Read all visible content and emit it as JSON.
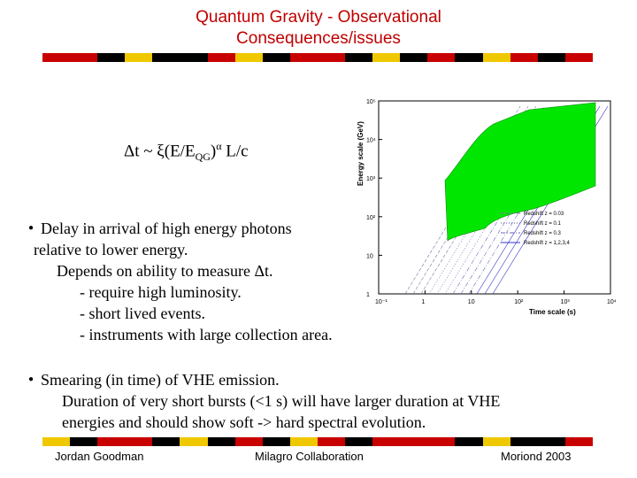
{
  "title": {
    "line1": "Quantum Gravity - Observational",
    "line2": "Consequences/issues"
  },
  "colors": {
    "title": "#c00000",
    "stripe_red": "#c80000",
    "stripe_black": "#000000",
    "stripe_yellow": "#f0c800",
    "band": "#00e600"
  },
  "formula": {
    "lhs": "Δt ~ ξ(E/E",
    "sub": "QG",
    "sup": "α",
    "rhs": " L/c"
  },
  "bullets": [
    {
      "lines": [
        "Delay in arrival of high energy photons",
        "relative to lower energy.",
        "Depends on ability to measure Δt.",
        "- require high luminosity.",
        "- short lived events.",
        "- instruments with large collection area."
      ]
    },
    {
      "lines": [
        "Smearing (in time) of VHE emission.",
        "Duration of very short bursts (<1 s) will have larger duration at VHE",
        "energies and should show soft -> hard spectral evolution."
      ]
    }
  ],
  "footer": {
    "left": "Jordan Goodman",
    "center": "Milagro Collaboration",
    "right": "Moriond 2003"
  },
  "chart_data": {
    "type": "line",
    "xlabel": "Time scale (s)",
    "ylabel": "Energy scale (GeV)",
    "x_ticks": [
      "10⁻¹",
      "1",
      "10",
      "10²",
      "10³",
      "10⁴"
    ],
    "y_ticks": [
      "1",
      "10",
      "10²",
      "10³",
      "10⁴",
      "10⁵"
    ],
    "xscale": "log",
    "yscale": "log",
    "xlim": [
      0.1,
      10000
    ],
    "ylim": [
      1,
      100000
    ],
    "legend_position": "right",
    "series": [
      {
        "name": "Redshift z = 0.03",
        "style": "dashed"
      },
      {
        "name": "Redshift z = 0.1",
        "style": "dotted"
      },
      {
        "name": "Redshift z = 0.3",
        "style": "dashdot"
      },
      {
        "name": "Redshift z = 1,2,3,4",
        "style": "solid"
      }
    ]
  }
}
